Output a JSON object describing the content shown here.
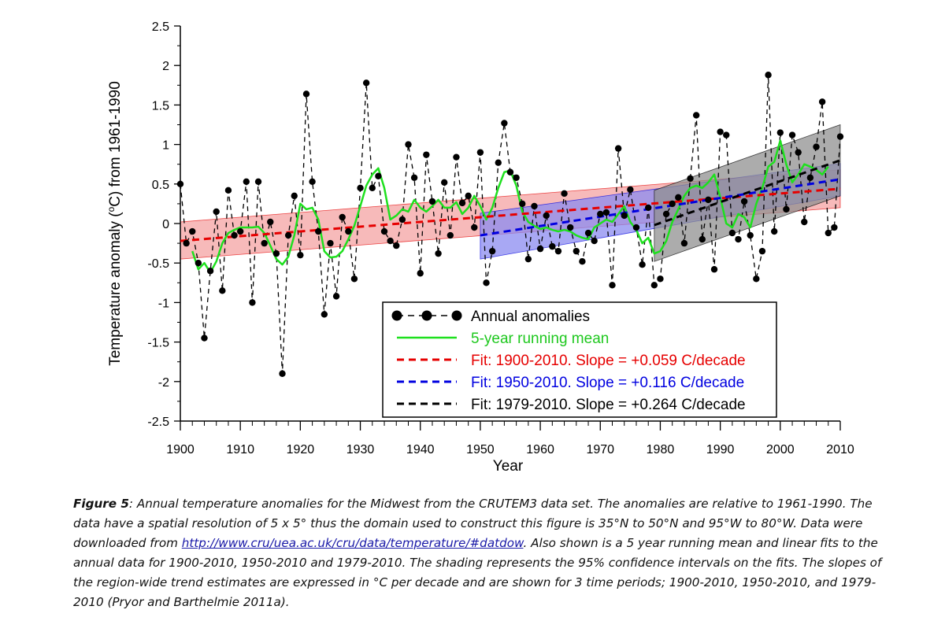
{
  "chart_data": {
    "type": "line",
    "xlabel": "Year",
    "ylabel": "Temperature anomaly (oC) from 1961-1990",
    "ylabel_parts": {
      "pre": "Temperature anomaly (",
      "sup": "o",
      "post": "C) from 1961-1990"
    },
    "xlim": [
      1900,
      2010
    ],
    "ylim": [
      -2.5,
      2.5
    ],
    "x_ticks": [
      1900,
      1910,
      1920,
      1930,
      1940,
      1950,
      1960,
      1970,
      1980,
      1990,
      2000,
      2010
    ],
    "x_tick_labels": [
      "1900",
      "1910",
      "1920",
      "1930",
      "1940",
      "1950",
      "1960",
      "1970",
      "1980",
      "1990",
      "2000",
      "2010"
    ],
    "y_ticks": [
      -2.5,
      -2,
      -1.5,
      -1,
      -0.5,
      0,
      0.5,
      1,
      1.5,
      2,
      2.5
    ],
    "y_tick_labels": [
      "-2.5",
      "-2",
      "-1.5",
      "-1",
      "-0.5",
      "0",
      "0.5",
      "1",
      "1.5",
      "2",
      "2.5"
    ],
    "annual": {
      "name": "Annual anomalies",
      "x": [
        1900,
        1901,
        1902,
        1903,
        1904,
        1905,
        1906,
        1907,
        1908,
        1909,
        1910,
        1911,
        1912,
        1913,
        1914,
        1915,
        1916,
        1917,
        1918,
        1919,
        1920,
        1921,
        1922,
        1923,
        1924,
        1925,
        1926,
        1927,
        1928,
        1929,
        1930,
        1931,
        1932,
        1933,
        1934,
        1935,
        1936,
        1937,
        1938,
        1939,
        1940,
        1941,
        1942,
        1943,
        1944,
        1945,
        1946,
        1947,
        1948,
        1949,
        1950,
        1951,
        1952,
        1953,
        1954,
        1955,
        1956,
        1957,
        1958,
        1959,
        1960,
        1961,
        1962,
        1963,
        1964,
        1965,
        1966,
        1967,
        1968,
        1969,
        1970,
        1971,
        1972,
        1973,
        1974,
        1975,
        1976,
        1977,
        1978,
        1979,
        1980,
        1981,
        1982,
        1983,
        1984,
        1985,
        1986,
        1987,
        1988,
        1989,
        1990,
        1991,
        1992,
        1993,
        1994,
        1995,
        1996,
        1997,
        1998,
        1999,
        2000,
        2001,
        2002,
        2003,
        2004,
        2005,
        2006,
        2007,
        2008,
        2009,
        2010
      ],
      "y": [
        0.5,
        -0.25,
        -0.1,
        -0.5,
        -1.45,
        -0.6,
        0.15,
        -0.85,
        0.42,
        -0.15,
        -0.1,
        0.53,
        -1.0,
        0.53,
        -0.25,
        0.02,
        -0.38,
        -1.9,
        -0.15,
        0.35,
        -0.4,
        1.64,
        0.53,
        -0.1,
        -1.15,
        -0.25,
        -0.92,
        0.08,
        -0.1,
        -0.7,
        0.45,
        1.78,
        0.45,
        0.6,
        -0.1,
        -0.22,
        -0.28,
        0.05,
        1.0,
        0.58,
        -0.63,
        0.87,
        0.28,
        -0.38,
        0.52,
        -0.15,
        0.84,
        0.26,
        0.35,
        -0.05,
        0.9,
        -0.75,
        -0.35,
        0.77,
        1.27,
        0.65,
        0.58,
        0.25,
        -0.45,
        0.22,
        -0.32,
        0.1,
        -0.29,
        -0.35,
        0.38,
        -0.05,
        -0.35,
        -0.48,
        -0.12,
        -0.22,
        0.12,
        0.14,
        -0.78,
        0.95,
        0.1,
        0.43,
        -0.05,
        -0.52,
        0.2,
        -0.78,
        -0.7,
        0.12,
        0.25,
        0.33,
        -0.25,
        0.57,
        1.37,
        -0.2,
        0.3,
        -0.58,
        1.16,
        1.12,
        -0.12,
        -0.2,
        0.28,
        -0.15,
        -0.7,
        -0.35,
        1.88,
        -0.1,
        1.15,
        0.18,
        1.12,
        0.9,
        0.02,
        0.58,
        0.97,
        1.54,
        -0.12,
        -0.05,
        1.1
      ]
    },
    "running_mean": {
      "name": "5-year running mean",
      "x": [
        1902,
        1903,
        1904,
        1905,
        1906,
        1907,
        1908,
        1909,
        1910,
        1911,
        1912,
        1913,
        1914,
        1915,
        1916,
        1917,
        1918,
        1919,
        1920,
        1921,
        1922,
        1923,
        1924,
        1925,
        1926,
        1927,
        1928,
        1929,
        1930,
        1931,
        1932,
        1933,
        1934,
        1935,
        1936,
        1937,
        1938,
        1939,
        1940,
        1941,
        1942,
        1943,
        1944,
        1945,
        1946,
        1947,
        1948,
        1949,
        1950,
        1951,
        1952,
        1953,
        1954,
        1955,
        1956,
        1957,
        1958,
        1959,
        1960,
        1961,
        1962,
        1963,
        1964,
        1965,
        1966,
        1967,
        1968,
        1969,
        1970,
        1971,
        1972,
        1973,
        1974,
        1975,
        1976,
        1977,
        1978,
        1979,
        1980,
        1981,
        1982,
        1983,
        1984,
        1985,
        1986,
        1987,
        1988,
        1989,
        1990,
        1991,
        1992,
        1993,
        1994,
        1995,
        1996,
        1997,
        1998,
        1999,
        2000,
        2001,
        2002,
        2003,
        2004,
        2005,
        2006,
        2007,
        2008
      ],
      "y": [
        -0.35,
        -0.58,
        -0.5,
        -0.62,
        -0.48,
        -0.25,
        -0.12,
        -0.08,
        -0.05,
        -0.05,
        -0.05,
        -0.04,
        -0.12,
        -0.28,
        -0.45,
        -0.52,
        -0.42,
        -0.15,
        0.25,
        0.18,
        0.2,
        0.05,
        -0.35,
        -0.43,
        -0.42,
        -0.35,
        -0.2,
        -0.03,
        0.22,
        0.48,
        0.62,
        0.7,
        0.45,
        0.05,
        0.1,
        0.18,
        0.15,
        0.3,
        0.2,
        0.15,
        0.22,
        0.3,
        0.2,
        0.2,
        0.27,
        0.12,
        0.2,
        0.35,
        0.22,
        0.05,
        0.2,
        0.45,
        0.65,
        0.67,
        0.48,
        0.15,
        0.02,
        -0.03,
        -0.07,
        -0.05,
        -0.08,
        -0.1,
        -0.08,
        -0.1,
        -0.15,
        -0.18,
        -0.2,
        -0.05,
        0.0,
        0.05,
        0.02,
        0.12,
        0.22,
        0.02,
        -0.08,
        -0.25,
        -0.18,
        -0.38,
        -0.35,
        -0.22,
        0.02,
        0.18,
        0.35,
        0.45,
        0.48,
        0.45,
        0.52,
        0.62,
        0.33,
        0.0,
        -0.05,
        0.12,
        0.08,
        -0.05,
        0.25,
        0.45,
        0.72,
        0.78,
        1.05,
        0.75,
        0.52,
        0.62,
        0.75,
        0.72,
        0.68,
        0.62,
        0.72
      ]
    },
    "fits": [
      {
        "name": "Fit: 1900-2010. Slope = +0.059 C/decade",
        "x": [
          1900,
          2010
        ],
        "y": [
          -0.22,
          0.44
        ],
        "ci_low": [
          -0.45,
          0.2
        ],
        "ci_high": [
          0.02,
          0.68
        ],
        "color": "#e60000",
        "band_color": "#f4a3a3"
      },
      {
        "name": "Fit: 1950-2010. Slope = +0.116 C/decade",
        "x": [
          1950,
          2010
        ],
        "y": [
          -0.15,
          0.56
        ],
        "ci_low": [
          -0.45,
          0.35
        ],
        "ci_high": [
          0.13,
          0.76
        ],
        "color": "#0000e0",
        "band_color": "#8b8bf0"
      },
      {
        "name": "Fit: 1979-2010. Slope = +0.264 C/decade",
        "x": [
          1979,
          2010
        ],
        "y": [
          -0.02,
          0.8
        ],
        "ci_low": [
          -0.48,
          0.35
        ],
        "ci_high": [
          0.42,
          1.25
        ],
        "color": "#000000",
        "band_color": "#909090"
      }
    ],
    "legend": {
      "position": "lower-right",
      "entries": [
        {
          "label": "Annual anomalies",
          "style": "dashed-dots",
          "color": "#000000"
        },
        {
          "label": "5-year running mean",
          "style": "solid",
          "color": "#1ee01e"
        },
        {
          "label": "Fit: 1900-2010. Slope = +0.059 C/decade",
          "style": "dashed",
          "color": "#e60000"
        },
        {
          "label": "Fit: 1950-2010. Slope = +0.116 C/decade",
          "style": "dashed",
          "color": "#0000e0"
        },
        {
          "label": "Fit: 1979-2010. Slope = +0.264 C/decade",
          "style": "dashed",
          "color": "#000000"
        }
      ]
    }
  },
  "caption": {
    "figure_label": "Figure 5",
    "text_before_link": ": Annual temperature anomalies for the Midwest from the CRUTEM3 data set. The anomalies are relative to 1961-1990. The data have a spatial resolution of 5 x 5° thus the domain used to construct this figure is 35°N to 50°N and 95°W to 80°W. Data were downloaded from ",
    "link_text": "http://www.cru/uea.ac.uk/cru/data/temperature/#datdow",
    "text_after_link": ". Also shown is a 5 year running mean and linear fits to the annual data for 1900-2010, 1950-2010 and 1979-2010. The shading represents the 95% confidence intervals on the fits. The slopes of the region-wide trend estimates are expressed in °C per decade and are shown for 3 time periods; 1900-2010, 1950-2010, and 1979-2010 (Pryor and Barthelmie 2011a)."
  }
}
